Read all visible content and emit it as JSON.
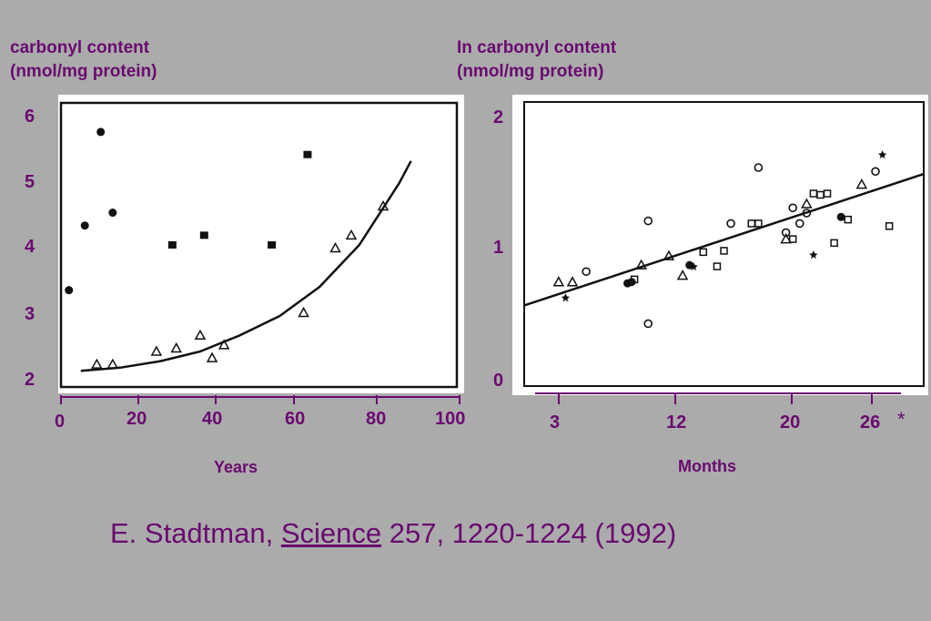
{
  "colors": {
    "background": "#ababab",
    "text": "#6a0a70",
    "axis": "#6a0a70",
    "plot": "#111111"
  },
  "asterisk": "*",
  "citation": {
    "author": "E. Stadtman, ",
    "journal": "Science",
    "rest": " 257, 1220-1224 (1992)"
  },
  "chart_data": [
    {
      "type": "scatter",
      "ylabel_lines": [
        "carbonyl content",
        "(nmol/mg protein)"
      ],
      "xlabel": "Years",
      "x_ticks": [
        "0",
        "20",
        "40",
        "60",
        "80",
        "100"
      ],
      "y_ticks": [
        "6",
        "5",
        "4",
        "3",
        "2"
      ],
      "xlim": [
        0,
        100
      ],
      "ylim": [
        1.9,
        6.3
      ],
      "grid": false,
      "series": [
        {
          "marker": "filled-circle",
          "x": [
            2,
            6,
            10,
            13
          ],
          "y": [
            3.4,
            4.4,
            5.85,
            4.6
          ]
        },
        {
          "marker": "filled-square",
          "x": [
            28,
            36,
            53,
            62
          ],
          "y": [
            4.1,
            4.25,
            4.1,
            5.5
          ]
        },
        {
          "marker": "open-triangle",
          "x": [
            9,
            13,
            24,
            29,
            35,
            38,
            41,
            61,
            69,
            73,
            81
          ],
          "y": [
            2.25,
            2.25,
            2.45,
            2.5,
            2.7,
            2.35,
            2.55,
            3.05,
            4.05,
            4.25,
            4.7
          ]
        },
        {
          "marker": "fit-curve",
          "x": [
            5,
            15,
            25,
            35,
            45,
            55,
            65,
            75,
            85,
            88
          ],
          "y": [
            2.15,
            2.2,
            2.3,
            2.45,
            2.7,
            3.0,
            3.45,
            4.1,
            5.05,
            5.4
          ]
        }
      ]
    },
    {
      "type": "scatter",
      "ylabel_lines": [
        "In carbonyl content",
        "(nmol/mg protein)"
      ],
      "xlabel": "Months",
      "x_ticks": [
        "3",
        "12",
        "20",
        "26"
      ],
      "y_ticks": [
        "2",
        "1",
        "0"
      ],
      "xlim": [
        0,
        29
      ],
      "ylim": [
        0,
        2.1
      ],
      "grid": false,
      "series": [
        {
          "marker": "open-circle",
          "x": [
            4.5,
            9,
            9,
            15,
            17,
            19,
            19.5,
            20,
            20.5,
            25.5
          ],
          "y": [
            0.88,
            1.27,
            0.48,
            1.25,
            1.68,
            1.18,
            1.37,
            1.25,
            1.33,
            1.65
          ]
        },
        {
          "marker": "open-triangle",
          "x": [
            2.5,
            3.5,
            8.5,
            10.5,
            11.5,
            19,
            20.5,
            24.5
          ],
          "y": [
            0.8,
            0.8,
            0.93,
            1.0,
            0.85,
            1.13,
            1.4,
            1.55
          ]
        },
        {
          "marker": "open-square",
          "x": [
            8,
            13,
            14,
            14.5,
            16.5,
            17,
            19.5,
            21,
            21.5,
            22,
            22.5,
            23.5,
            26.5
          ],
          "y": [
            0.82,
            1.03,
            0.92,
            1.04,
            1.25,
            1.25,
            1.13,
            1.48,
            1.47,
            1.48,
            1.1,
            1.28,
            1.23
          ]
        },
        {
          "marker": "filled-circle",
          "x": [
            7.5,
            7.8,
            12,
            23
          ],
          "y": [
            0.79,
            0.8,
            0.93,
            1.3
          ]
        },
        {
          "marker": "star",
          "x": [
            3,
            12.3,
            21,
            26
          ],
          "y": [
            0.68,
            0.92,
            1.01,
            1.78
          ]
        },
        {
          "marker": "fit-line",
          "x": [
            0,
            29
          ],
          "y": [
            0.62,
            1.63
          ]
        }
      ]
    }
  ]
}
